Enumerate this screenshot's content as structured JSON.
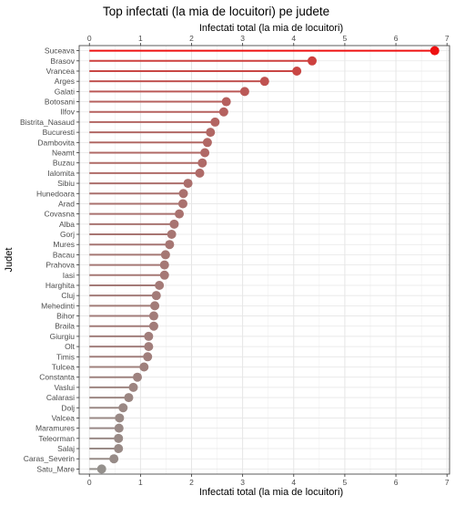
{
  "chart_data": {
    "type": "lollipop",
    "orientation": "horizontal",
    "title": "Top infectati (la mia de locuitori) pe judete",
    "xlabel": "Infectati total (la mia de locuitori)",
    "xlabel_top": "Infectati total (la mia de locuitori)",
    "ylabel": "Judet",
    "xlim": [
      -0.2,
      7.05
    ],
    "xticks": [
      0,
      1,
      2,
      3,
      4,
      5,
      6,
      7
    ],
    "grid": true,
    "legend": "none",
    "color_low": "#94908c",
    "color_high": "#ee1111",
    "categories": [
      "Suceava",
      "Brasov",
      "Vrancea",
      "Arges",
      "Galati",
      "Botosani",
      "Ilfov",
      "Bistrita_Nasaud",
      "Bucuresti",
      "Dambovita",
      "Neamt",
      "Buzau",
      "Ialomita",
      "Sibiu",
      "Hunedoara",
      "Arad",
      "Covasna",
      "Alba",
      "Gorj",
      "Mures",
      "Bacau",
      "Prahova",
      "Iasi",
      "Harghita",
      "Cluj",
      "Mehedinti",
      "Bihor",
      "Braila",
      "Giurgiu",
      "Olt",
      "Timis",
      "Tulcea",
      "Constanta",
      "Vaslui",
      "Calarasi",
      "Dolj",
      "Valcea",
      "Maramures",
      "Teleorman",
      "Salaj",
      "Caras_Severin",
      "Satu_Mare"
    ],
    "values": [
      6.76,
      4.36,
      4.06,
      3.43,
      3.04,
      2.68,
      2.63,
      2.46,
      2.37,
      2.31,
      2.26,
      2.21,
      2.16,
      1.93,
      1.84,
      1.83,
      1.76,
      1.66,
      1.61,
      1.57,
      1.49,
      1.47,
      1.47,
      1.37,
      1.31,
      1.28,
      1.26,
      1.26,
      1.16,
      1.16,
      1.14,
      1.07,
      0.94,
      0.86,
      0.77,
      0.66,
      0.59,
      0.58,
      0.57,
      0.57,
      0.48,
      0.24
    ]
  }
}
